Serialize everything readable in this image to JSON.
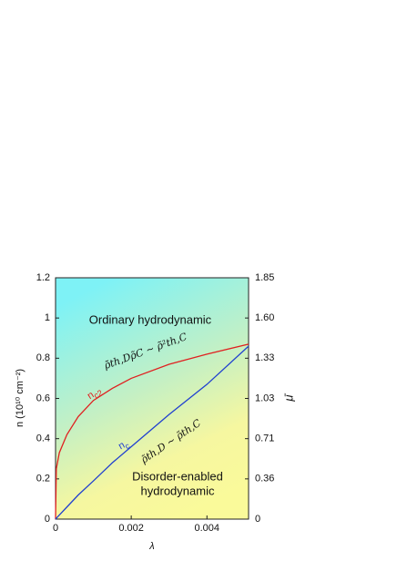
{
  "chart_data": {
    "type": "line",
    "x_label": "λ",
    "y_label": "n  (10¹⁰ cm⁻²)",
    "y2_label": "μ̄",
    "x": [
      0,
      2e-05,
      0.0001,
      0.0003,
      0.0006,
      0.001,
      0.0015,
      0.002,
      0.003,
      0.004,
      0.0051
    ],
    "series": [
      {
        "name": "n",
        "subscript": "c2",
        "color": "#e02020",
        "values": [
          0,
          0.25,
          0.33,
          0.42,
          0.51,
          0.59,
          0.65,
          0.7,
          0.77,
          0.82,
          0.87
        ],
        "relation": "ρ̃th,Dρ̃C ~ ρ̃²th,C"
      },
      {
        "name": "n",
        "subscript": "c",
        "color": "#2040d0",
        "values": [
          0,
          0.004,
          0.02,
          0.06,
          0.12,
          0.19,
          0.28,
          0.36,
          0.52,
          0.67,
          0.86
        ],
        "relation": "ρ̃th,D ~ ρ̃th,C"
      }
    ],
    "regions": [
      "Ordinary hydrodynamic",
      "Disorder-enabled",
      "hydrodynamic"
    ],
    "xlim": [
      0,
      0.0051
    ],
    "ylim": [
      0,
      1.2
    ],
    "xticks": [
      0,
      0.002,
      0.004
    ],
    "yticks": [
      0,
      0.2,
      0.4,
      0.6,
      0.8,
      1,
      1.2
    ],
    "y2ticks": [
      0,
      0.36,
      0.71,
      1.03,
      1.33,
      {
        "value": 1.6,
        "label": "1.60"
      },
      1.85
    ]
  }
}
